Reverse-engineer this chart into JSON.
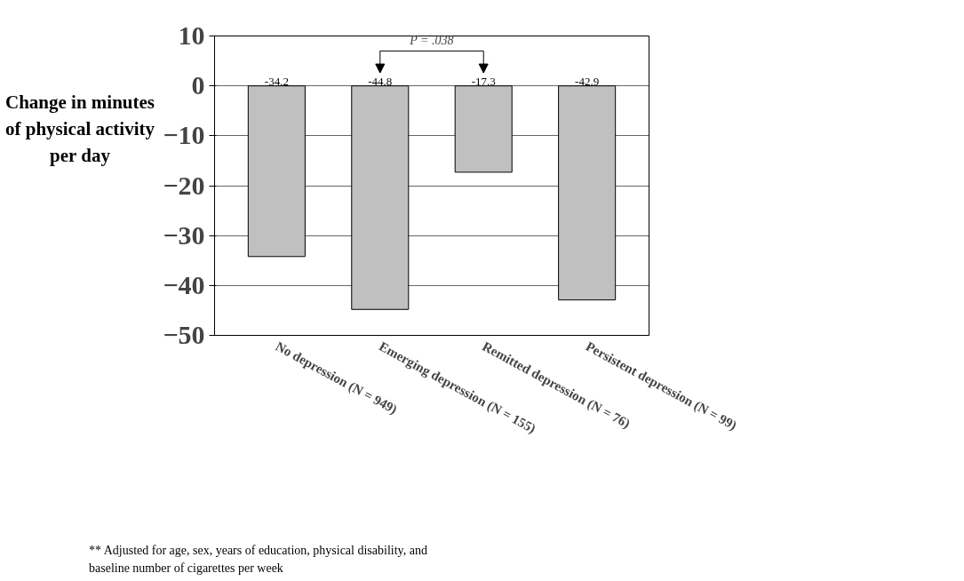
{
  "chart_data": {
    "type": "bar",
    "ylabel": "Change in minutes of physical activity per day",
    "categories": [
      "No depression (N = 949)",
      "Emerging depression (N = 155)",
      "Remitted depression (N = 76)",
      "Persistent depression (N = 99)"
    ],
    "values": [
      -34.2,
      -44.8,
      -17.3,
      -42.9
    ],
    "color": "#c0c0c0",
    "ylim": [
      -50,
      10
    ],
    "yticks": [
      -50,
      -40,
      -30,
      -20,
      -10,
      0,
      10
    ],
    "grid": "y",
    "data_labels": true,
    "annotations": [
      "P = .038",
      "** Adjusted for age, sex, years of education, physical disability, and baseline number of cigarettes per week"
    ]
  }
}
